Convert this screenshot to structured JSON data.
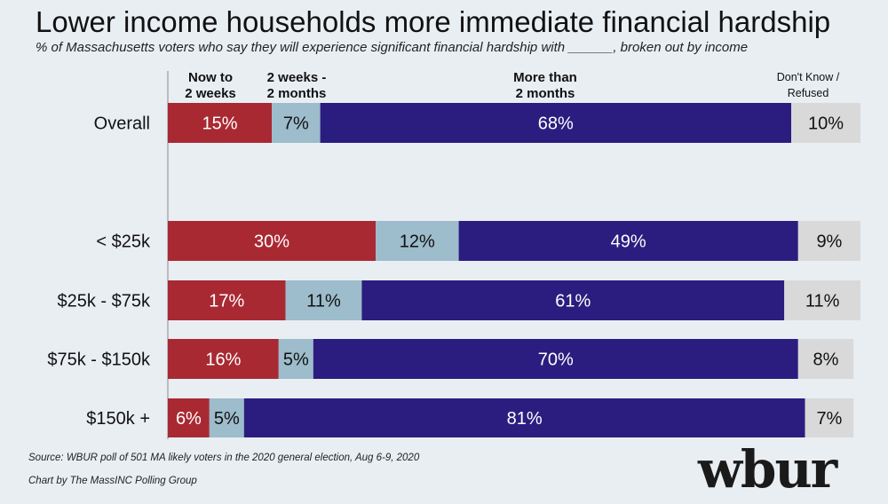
{
  "title": "Lower income households more immediate financial hardship",
  "subtitle": "% of Massachusetts voters who say they will experience significant financial hardship with ______, broken out by income",
  "source": "Source: WBUR poll of 501 MA likely voters in the 2020 general election, Aug 6-9, 2020",
  "credit": "Chart by The MassINC Polling Group",
  "logo": "wbur",
  "colors": {
    "now_to_2_weeks": "#a92932",
    "2_weeks_2_months": "#9dbccc",
    "more_than_2_months": "#2b1d7f",
    "dont_know": "#d9d9d9",
    "background": "#e9eef3"
  },
  "chart_data": {
    "type": "bar",
    "orientation": "horizontal",
    "stacked": true,
    "xlim": [
      0,
      100
    ],
    "grid": false,
    "legend": "top",
    "categories": [
      "Overall",
      "< $25k",
      "$25k - $75k",
      "$75k - $150k",
      "$150k +"
    ],
    "series": [
      {
        "name": "Now to 2 weeks",
        "values": [
          15,
          30,
          17,
          16,
          6
        ],
        "color": "#a92932",
        "label_color": "#ffffff"
      },
      {
        "name": "2 weeks - 2 months",
        "values": [
          7,
          12,
          11,
          5,
          5
        ],
        "color": "#9dbccc",
        "label_color": "#111111"
      },
      {
        "name": "More than 2 months",
        "values": [
          68,
          49,
          61,
          70,
          81
        ],
        "color": "#2b1d7f",
        "label_color": "#ffffff"
      },
      {
        "name": "Don't Know / Refused",
        "values": [
          10,
          9,
          11,
          8,
          7
        ],
        "color": "#d9d9d9",
        "label_color": "#111111"
      }
    ]
  }
}
